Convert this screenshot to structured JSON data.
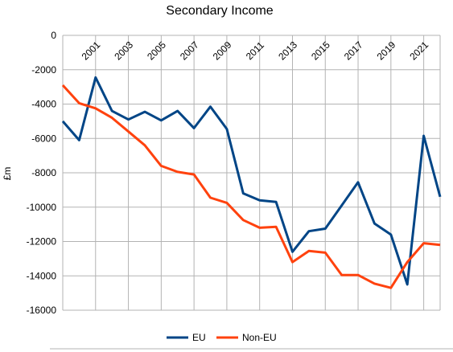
{
  "chart_data": {
    "type": "line",
    "title": "Secondary Income",
    "ylabel": "£m",
    "xlabel": "",
    "ylim": [
      -16000,
      0
    ],
    "ystep": 2000,
    "grid": true,
    "legend_position": "bottom",
    "x_tick_labels": [
      "2001",
      "2003",
      "2005",
      "2007",
      "2009",
      "2011",
      "2013",
      "2015",
      "2017",
      "2019",
      "2021"
    ],
    "x": [
      1999,
      2000,
      2001,
      2002,
      2003,
      2004,
      2005,
      2006,
      2007,
      2008,
      2009,
      2010,
      2011,
      2012,
      2013,
      2014,
      2015,
      2016,
      2017,
      2018,
      2019,
      2020,
      2021,
      2022
    ],
    "series": [
      {
        "name": "EU",
        "color": "#004586",
        "values": [
          -5000,
          -6100,
          -2450,
          -4400,
          -4900,
          -4450,
          -4950,
          -4400,
          -5400,
          -4150,
          -5450,
          -9200,
          -9600,
          -9700,
          -12600,
          -11400,
          -11250,
          -9900,
          -8550,
          -10950,
          -11600,
          -14500,
          -5850,
          -9400
        ]
      },
      {
        "name": "Non-EU",
        "color": "#ff420e",
        "values": [
          -2900,
          -3950,
          -4250,
          -4800,
          -5600,
          -6400,
          -7600,
          -7950,
          -8100,
          -9450,
          -9750,
          -10750,
          -11200,
          -11150,
          -13200,
          -12550,
          -12650,
          -13950,
          -13950,
          -14450,
          -14700,
          -13200,
          -12100,
          -12200
        ]
      }
    ]
  }
}
